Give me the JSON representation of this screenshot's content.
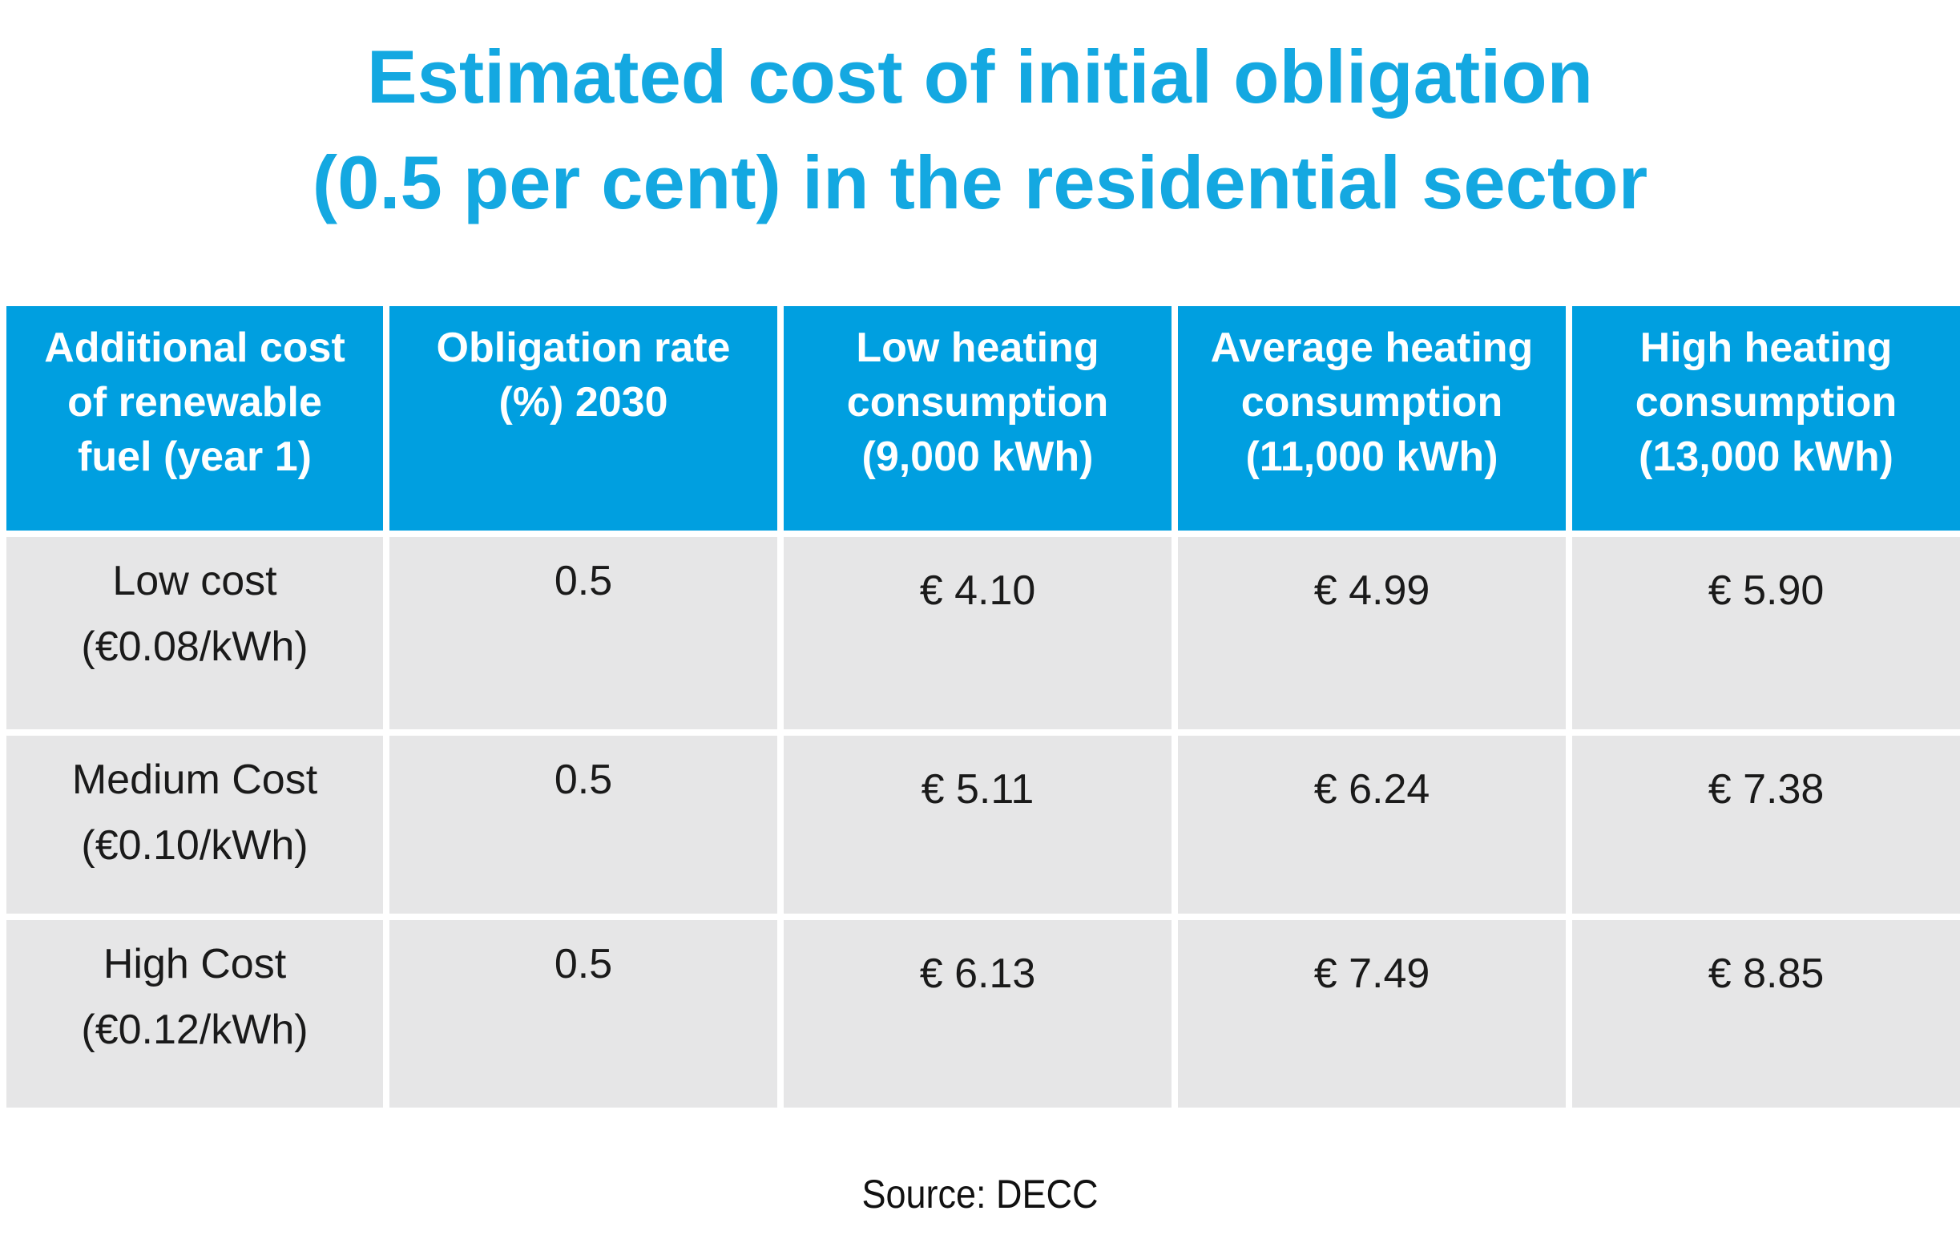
{
  "title": {
    "line1": "Estimated cost of initial obligation",
    "line2": "(0.5 per cent) in the residential sector"
  },
  "table": {
    "headers": [
      [
        "Additional cost",
        "of renewable",
        "fuel (year 1)"
      ],
      [
        "Obligation rate",
        "(%) 2030"
      ],
      [
        "Low heating",
        "consumption",
        "(9,000 kWh)"
      ],
      [
        "Average heating",
        "consumption",
        "(11,000 kWh)"
      ],
      [
        "High heating",
        "consumption",
        "(13,000 kWh)"
      ]
    ],
    "rows": [
      {
        "label": "Low cost",
        "price": "(€0.08/kWh)",
        "rate": "0.5",
        "low": "€ 4.10",
        "average": "€ 4.99",
        "high": "€ 5.90"
      },
      {
        "label": "Medium Cost",
        "price": "(€0.10/kWh)",
        "rate": "0.5",
        "low": "€ 5.11",
        "average": "€ 6.24",
        "high": "€ 7.38"
      },
      {
        "label": "High Cost",
        "price": "(€0.12/kWh)",
        "rate": "0.5",
        "low": "€ 6.13",
        "average": "€ 7.49",
        "high": "€ 8.85"
      }
    ]
  },
  "source": "Source: DECC",
  "colors": {
    "title": "#14a8e1",
    "header_bg": "#009fe0",
    "cell_bg": "#e6e6e7"
  }
}
